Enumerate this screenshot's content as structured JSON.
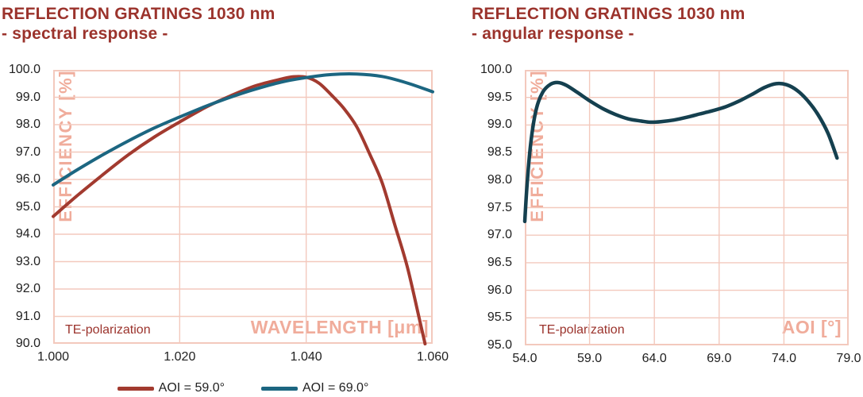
{
  "colors": {
    "dark_red": "#9B332C",
    "curve_red": "#A23A2F",
    "curve_teal": "#1C6681",
    "curve_dark_teal": "#15404F",
    "grid_pink": "#F3C9BD",
    "axis_label_pink": "#F0AC9B",
    "tick_text": "#212121",
    "background": "#FFFFFF"
  },
  "chart_data": [
    {
      "type": "line",
      "title_line1": "REFLECTION GRATINGS 1030 nm",
      "title_line2": "- spectral response -",
      "xlabel": "WAVELENGTH [μm]",
      "ylabel": "EFFICIENCY [%]",
      "annotation": "TE-polarization",
      "xlim": [
        1.0,
        1.06
      ],
      "ylim": [
        90.0,
        100.0
      ],
      "xticks": [
        1.0,
        1.02,
        1.04,
        1.06
      ],
      "xtick_labels": [
        "1.000",
        "1.020",
        "1.040",
        "1.060"
      ],
      "ytick_labels": [
        "100.0",
        "99.0",
        "98.0",
        "97.0",
        "96.0",
        "95.0",
        "94.0",
        "93.0",
        "92.0",
        "91.0",
        "90.0"
      ],
      "grid": true,
      "legend_position": "bottom",
      "series": [
        {
          "name": "AOI = 59.0°",
          "color": "#A23A2F",
          "x": [
            1.0,
            1.004,
            1.008,
            1.012,
            1.016,
            1.02,
            1.024,
            1.028,
            1.032,
            1.036,
            1.038,
            1.04,
            1.042,
            1.044,
            1.046,
            1.048,
            1.05,
            1.052,
            1.054,
            1.056,
            1.058,
            1.0588
          ],
          "y": [
            94.65,
            95.45,
            96.2,
            96.92,
            97.55,
            98.1,
            98.62,
            99.05,
            99.42,
            99.66,
            99.75,
            99.73,
            99.52,
            99.08,
            98.58,
            97.92,
            96.95,
            95.88,
            94.35,
            92.8,
            90.8,
            90.0
          ]
        },
        {
          "name": "AOI = 69.0°",
          "color": "#1C6681",
          "x": [
            1.0,
            1.004,
            1.008,
            1.012,
            1.016,
            1.02,
            1.024,
            1.028,
            1.032,
            1.036,
            1.04,
            1.044,
            1.048,
            1.052,
            1.056,
            1.06
          ],
          "y": [
            95.8,
            96.38,
            96.92,
            97.42,
            97.88,
            98.28,
            98.66,
            99.0,
            99.3,
            99.55,
            99.72,
            99.83,
            99.85,
            99.76,
            99.52,
            99.2
          ]
        }
      ]
    },
    {
      "type": "line",
      "title_line1": "REFLECTION GRATINGS 1030 nm",
      "title_line2": "- angular response -",
      "xlabel": "AOI [°]",
      "ylabel": "EFFICIENCY [%]",
      "annotation": "TE-polarization",
      "xlim": [
        54.0,
        79.0
      ],
      "ylim": [
        95.0,
        100.0
      ],
      "xticks": [
        54.0,
        59.0,
        64.0,
        69.0,
        74.0,
        79.0
      ],
      "xtick_labels": [
        "54.0",
        "59.0",
        "64.0",
        "69.0",
        "74.0",
        "79.0"
      ],
      "ytick_labels": [
        "100.0",
        "99.5",
        "99.0",
        "98.5",
        "98.0",
        "97.5",
        "97.0",
        "96.5",
        "96.0",
        "95.5",
        "95.0"
      ],
      "grid": true,
      "legend_position": "none",
      "series": [
        {
          "name": "",
          "color": "#15404F",
          "x": [
            54.0,
            54.2,
            54.5,
            54.9,
            55.4,
            56.0,
            56.6,
            57.2,
            58.0,
            59.0,
            60.0,
            61.0,
            62.0,
            63.0,
            63.7,
            64.5,
            65.5,
            66.5,
            67.5,
            68.5,
            69.5,
            70.5,
            71.5,
            72.5,
            73.4,
            74.2,
            75.0,
            75.8,
            76.6,
            77.4,
            78.1
          ],
          "y": [
            97.25,
            98.0,
            98.75,
            99.3,
            99.6,
            99.74,
            99.77,
            99.72,
            99.6,
            99.44,
            99.3,
            99.19,
            99.11,
            99.07,
            99.05,
            99.06,
            99.09,
            99.14,
            99.2,
            99.26,
            99.33,
            99.43,
            99.55,
            99.68,
            99.75,
            99.73,
            99.63,
            99.45,
            99.2,
            98.85,
            98.4
          ]
        }
      ]
    }
  ]
}
